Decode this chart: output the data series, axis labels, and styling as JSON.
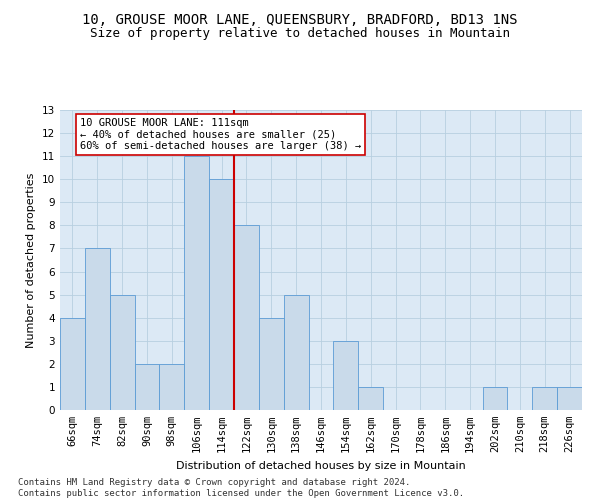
{
  "title": "10, GROUSE MOOR LANE, QUEENSBURY, BRADFORD, BD13 1NS",
  "subtitle": "Size of property relative to detached houses in Mountain",
  "xlabel": "Distribution of detached houses by size in Mountain",
  "ylabel": "Number of detached properties",
  "bar_labels": [
    "66sqm",
    "74sqm",
    "82sqm",
    "90sqm",
    "98sqm",
    "106sqm",
    "114sqm",
    "122sqm",
    "130sqm",
    "138sqm",
    "146sqm",
    "154sqm",
    "162sqm",
    "170sqm",
    "178sqm",
    "186sqm",
    "194sqm",
    "202sqm",
    "210sqm",
    "218sqm",
    "226sqm"
  ],
  "bar_values": [
    4,
    7,
    5,
    2,
    2,
    11,
    10,
    8,
    4,
    5,
    0,
    3,
    1,
    0,
    0,
    0,
    0,
    1,
    0,
    1,
    1
  ],
  "bar_color": "#c9daea",
  "bar_edge_color": "#5b9bd5",
  "vline_color": "#cc0000",
  "vline_x_index": 6,
  "annotation_text": "10 GROUSE MOOR LANE: 111sqm\n← 40% of detached houses are smaller (25)\n60% of semi-detached houses are larger (38) →",
  "annotation_box_color": "#ffffff",
  "annotation_box_edge": "#cc0000",
  "ylim": [
    0,
    13
  ],
  "yticks": [
    0,
    1,
    2,
    3,
    4,
    5,
    6,
    7,
    8,
    9,
    10,
    11,
    12,
    13
  ],
  "footer": "Contains HM Land Registry data © Crown copyright and database right 2024.\nContains public sector information licensed under the Open Government Licence v3.0.",
  "bg_color": "#dce9f5",
  "grid_color": "#b8cfe0",
  "title_fontsize": 10,
  "subtitle_fontsize": 9,
  "axis_label_fontsize": 8,
  "tick_fontsize": 7.5,
  "annotation_fontsize": 7.5,
  "footer_fontsize": 6.5
}
